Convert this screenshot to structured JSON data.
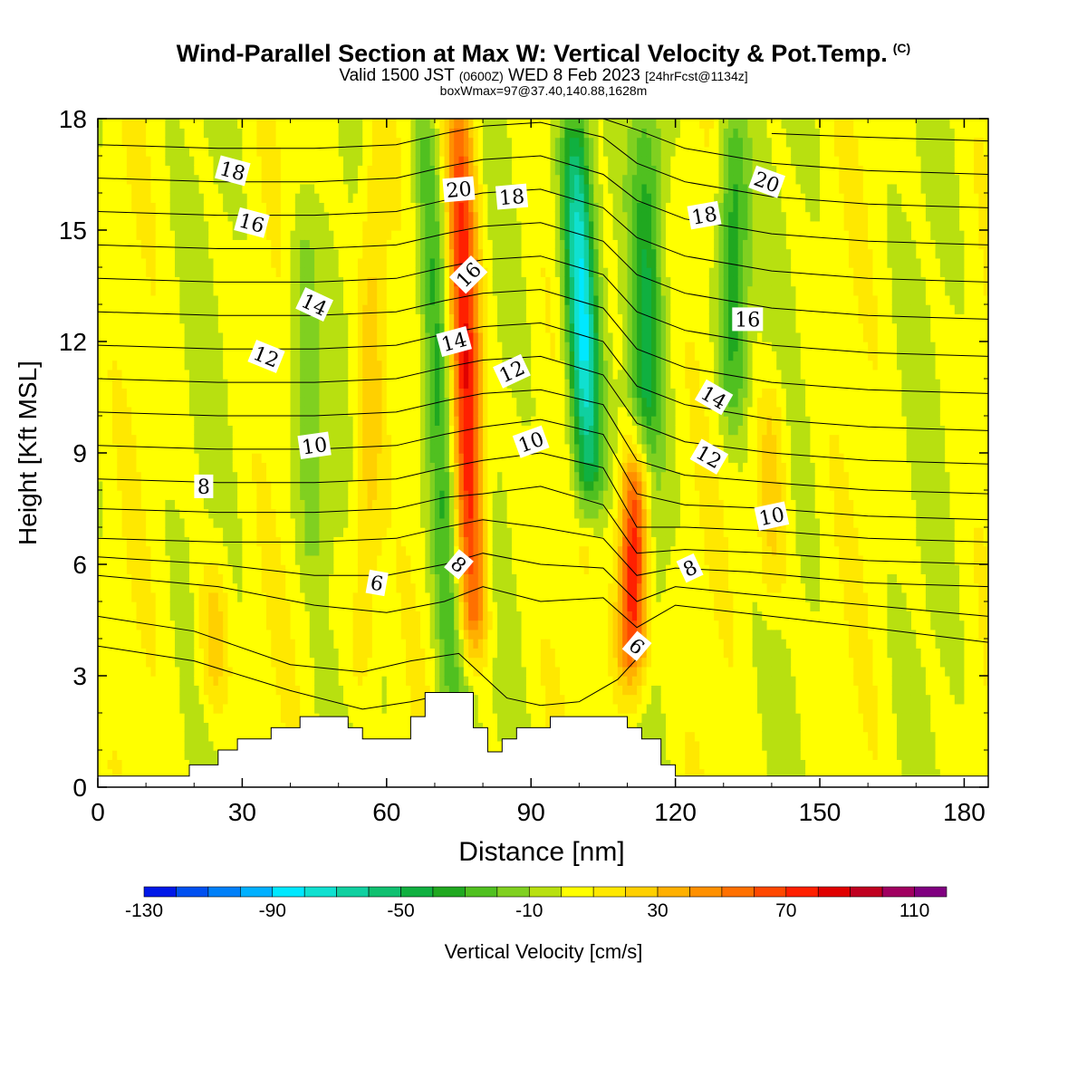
{
  "title": {
    "main": "Wind-Parallel Section at Max W: Vertical Velocity & Pot.Temp.",
    "copyright_mark": "(C)",
    "line2_a": "Valid 1500 JST",
    "line2_b": "(0600Z)",
    "line2_c": "WED 8 Feb 2023",
    "line2_d": "[24hrFcst@1134z]",
    "line3": "boxWmax=97@37.40,140.88,1628m"
  },
  "chart_data": {
    "type": "heatmap",
    "xlabel": "Distance [nm]",
    "ylabel": "Height [Kft MSL]",
    "xlim": [
      0,
      185
    ],
    "ylim": [
      0,
      18
    ],
    "x_ticks": [
      0,
      30,
      60,
      90,
      120,
      150,
      180
    ],
    "y_ticks": [
      0,
      3,
      6,
      9,
      12,
      15,
      18
    ],
    "colorbar": {
      "label": "Vertical Velocity [cm/s]",
      "levels": [
        -130,
        -120,
        -110,
        -100,
        -90,
        -80,
        -70,
        -60,
        -50,
        -40,
        -30,
        -20,
        -10,
        0,
        10,
        20,
        30,
        40,
        50,
        60,
        70,
        80,
        90,
        100,
        110,
        120
      ],
      "tick_labels": [
        -130,
        -90,
        -50,
        -10,
        30,
        70,
        110
      ],
      "colors": [
        "#0018e8",
        "#0050f0",
        "#0080f8",
        "#00b0ff",
        "#00e8ff",
        "#10e0d0",
        "#10d0a0",
        "#10c070",
        "#10b040",
        "#20a820",
        "#50c020",
        "#80d020",
        "#b8e010",
        "#ffff00",
        "#ffe800",
        "#ffd000",
        "#ffb000",
        "#ff9000",
        "#ff7000",
        "#ff4800",
        "#ff2000",
        "#e00000",
        "#c00020",
        "#a00060",
        "#800080"
      ]
    },
    "terrain_profile": [
      [
        0,
        0.3
      ],
      [
        19,
        0.3
      ],
      [
        19,
        0.6
      ],
      [
        25,
        0.6
      ],
      [
        25,
        1.0
      ],
      [
        29,
        1.0
      ],
      [
        29,
        1.3
      ],
      [
        36,
        1.3
      ],
      [
        36,
        1.6
      ],
      [
        42,
        1.6
      ],
      [
        42,
        1.9
      ],
      [
        52,
        1.9
      ],
      [
        52,
        1.6
      ],
      [
        55,
        1.6
      ],
      [
        55,
        1.3
      ],
      [
        65,
        1.3
      ],
      [
        65,
        1.9
      ],
      [
        68,
        1.9
      ],
      [
        68,
        2.55
      ],
      [
        78,
        2.55
      ],
      [
        78,
        1.6
      ],
      [
        81,
        1.6
      ],
      [
        81,
        0.95
      ],
      [
        84,
        0.95
      ],
      [
        84,
        1.3
      ],
      [
        87,
        1.3
      ],
      [
        87,
        1.6
      ],
      [
        94,
        1.6
      ],
      [
        94,
        1.9
      ],
      [
        110,
        1.9
      ],
      [
        110,
        1.6
      ],
      [
        113,
        1.6
      ],
      [
        113,
        1.3
      ],
      [
        117,
        1.3
      ],
      [
        117,
        0.6
      ],
      [
        120,
        0.6
      ],
      [
        120,
        0.3
      ],
      [
        185,
        0.3
      ]
    ],
    "vertical_velocity_features": [
      {
        "x": 74,
        "z_base": 2.2,
        "x_top": 68,
        "z_top": 18,
        "w": -45
      },
      {
        "x": 78,
        "z_base": 4,
        "x_top": 75,
        "z_top": 18,
        "w": 85
      },
      {
        "x": 102,
        "z_base": 8,
        "x_top": 99,
        "z_top": 18,
        "w": -90
      },
      {
        "x": 111,
        "z_base": 3,
        "x_top": 112,
        "z_top": 9,
        "w": 95
      },
      {
        "x": 114,
        "z_base": 5,
        "x_top": 114,
        "z_top": 18,
        "w": -40
      },
      {
        "x": 132,
        "z_base": 10,
        "x_top": 132,
        "z_top": 18,
        "w": -45
      },
      {
        "x": 55,
        "z_base": 3,
        "x_top": 58,
        "z_top": 18,
        "w": 25
      },
      {
        "x": 24,
        "z_base": 2,
        "x_top": 24,
        "z_top": 6,
        "w": 25
      },
      {
        "x": 140,
        "z_base": 5,
        "x_top": 140,
        "z_top": 11,
        "w": 25
      },
      {
        "x": 45,
        "z_base": 6,
        "x_top": 42,
        "z_top": 15,
        "w": -25
      }
    ],
    "theta_contour_labels": [
      {
        "text": "18",
        "x": 28,
        "z": 16.6,
        "rot": 15
      },
      {
        "text": "16",
        "x": 32,
        "z": 15.2,
        "rot": 15
      },
      {
        "text": "14",
        "x": 45,
        "z": 13.0,
        "rot": 25
      },
      {
        "text": "12",
        "x": 35,
        "z": 11.6,
        "rot": 22
      },
      {
        "text": "10",
        "x": 45,
        "z": 9.2,
        "rot": -8
      },
      {
        "text": "8",
        "x": 22,
        "z": 8.1,
        "rot": 0
      },
      {
        "text": "6",
        "x": 58,
        "z": 5.5,
        "rot": 10
      },
      {
        "text": "20",
        "x": 75,
        "z": 16.1,
        "rot": -5
      },
      {
        "text": "18",
        "x": 86,
        "z": 15.9,
        "rot": -5
      },
      {
        "text": "16",
        "x": 77,
        "z": 13.8,
        "rot": -45
      },
      {
        "text": "14",
        "x": 74,
        "z": 12.0,
        "rot": -15
      },
      {
        "text": "12",
        "x": 86,
        "z": 11.2,
        "rot": -25
      },
      {
        "text": "10",
        "x": 90,
        "z": 9.3,
        "rot": -20
      },
      {
        "text": "8",
        "x": 75,
        "z": 6.0,
        "rot": 40
      },
      {
        "text": "6",
        "x": 112,
        "z": 3.8,
        "rot": 40
      },
      {
        "text": "8",
        "x": 123,
        "z": 5.9,
        "rot": -25
      },
      {
        "text": "20",
        "x": 139,
        "z": 16.3,
        "rot": 20
      },
      {
        "text": "18",
        "x": 126,
        "z": 15.4,
        "rot": -10
      },
      {
        "text": "16",
        "x": 135,
        "z": 12.6,
        "rot": 0
      },
      {
        "text": "14",
        "x": 128,
        "z": 10.5,
        "rot": 30
      },
      {
        "text": "12",
        "x": 127,
        "z": 8.9,
        "rot": 30
      },
      {
        "text": "10",
        "x": 140,
        "z": 7.3,
        "rot": -12
      }
    ],
    "theta_isentropes": [
      [
        [
          0,
          3.8
        ],
        [
          20,
          3.4
        ],
        [
          40,
          2.6
        ],
        [
          55,
          2.1
        ],
        [
          65,
          2.3
        ],
        [
          72,
          2.5
        ]
      ],
      [
        [
          0,
          4.6
        ],
        [
          20,
          4.2
        ],
        [
          40,
          3.3
        ],
        [
          55,
          3.1
        ],
        [
          65,
          3.4
        ],
        [
          75,
          3.6
        ],
        [
          85,
          2.4
        ],
        [
          92,
          2.2
        ],
        [
          100,
          2.3
        ],
        [
          108,
          2.9
        ],
        [
          113,
          3.6
        ]
      ],
      [
        [
          0,
          5.7
        ],
        [
          25,
          5.4
        ],
        [
          45,
          4.9
        ],
        [
          60,
          4.7
        ],
        [
          72,
          5.0
        ],
        [
          80,
          5.4
        ],
        [
          92,
          5.0
        ],
        [
          105,
          5.1
        ],
        [
          112,
          4.3
        ],
        [
          120,
          4.9
        ],
        [
          140,
          4.6
        ],
        [
          160,
          4.3
        ],
        [
          185,
          3.9
        ]
      ],
      [
        [
          0,
          6.2
        ],
        [
          25,
          6.0
        ],
        [
          45,
          5.7
        ],
        [
          60,
          5.7
        ],
        [
          72,
          6.0
        ],
        [
          80,
          6.3
        ],
        [
          92,
          6.0
        ],
        [
          105,
          5.9
        ],
        [
          112,
          5.0
        ],
        [
          120,
          5.4
        ],
        [
          135,
          5.2
        ],
        [
          160,
          4.9
        ],
        [
          185,
          4.6
        ]
      ],
      [
        [
          0,
          6.7
        ],
        [
          25,
          6.6
        ],
        [
          45,
          6.6
        ],
        [
          62,
          6.7
        ],
        [
          72,
          7.0
        ],
        [
          80,
          7.2
        ],
        [
          92,
          7.0
        ],
        [
          105,
          6.7
        ],
        [
          112,
          5.7
        ],
        [
          120,
          5.9
        ],
        [
          135,
          5.8
        ],
        [
          160,
          5.5
        ],
        [
          185,
          5.4
        ]
      ],
      [
        [
          0,
          7.5
        ],
        [
          25,
          7.4
        ],
        [
          45,
          7.4
        ],
        [
          62,
          7.5
        ],
        [
          72,
          7.8
        ],
        [
          80,
          7.9
        ],
        [
          92,
          8.1
        ],
        [
          105,
          7.6
        ],
        [
          112,
          6.3
        ],
        [
          122,
          6.4
        ],
        [
          140,
          6.3
        ],
        [
          160,
          6.1
        ],
        [
          185,
          6.0
        ]
      ],
      [
        [
          0,
          8.3
        ],
        [
          25,
          8.2
        ],
        [
          45,
          8.2
        ],
        [
          62,
          8.3
        ],
        [
          72,
          8.6
        ],
        [
          80,
          8.8
        ],
        [
          92,
          9.0
        ],
        [
          105,
          8.6
        ],
        [
          112,
          7.0
        ],
        [
          122,
          7.0
        ],
        [
          140,
          6.9
        ],
        [
          160,
          6.7
        ],
        [
          185,
          6.6
        ]
      ],
      [
        [
          0,
          9.2
        ],
        [
          25,
          9.1
        ],
        [
          45,
          9.1
        ],
        [
          62,
          9.2
        ],
        [
          72,
          9.5
        ],
        [
          80,
          9.7
        ],
        [
          92,
          9.9
        ],
        [
          105,
          9.5
        ],
        [
          112,
          7.9
        ],
        [
          122,
          7.6
        ],
        [
          140,
          7.5
        ],
        [
          160,
          7.3
        ],
        [
          185,
          7.2
        ]
      ],
      [
        [
          0,
          10.1
        ],
        [
          25,
          10.0
        ],
        [
          45,
          10.0
        ],
        [
          62,
          10.1
        ],
        [
          72,
          10.4
        ],
        [
          80,
          10.6
        ],
        [
          92,
          10.7
        ],
        [
          105,
          10.3
        ],
        [
          112,
          8.8
        ],
        [
          122,
          8.4
        ],
        [
          140,
          8.2
        ],
        [
          160,
          8.0
        ],
        [
          185,
          7.9
        ]
      ],
      [
        [
          0,
          11.0
        ],
        [
          25,
          10.9
        ],
        [
          45,
          10.9
        ],
        [
          62,
          11.0
        ],
        [
          72,
          11.3
        ],
        [
          80,
          11.5
        ],
        [
          92,
          11.6
        ],
        [
          105,
          11.1
        ],
        [
          112,
          9.8
        ],
        [
          122,
          9.3
        ],
        [
          140,
          9.0
        ],
        [
          160,
          8.8
        ],
        [
          185,
          8.7
        ]
      ],
      [
        [
          0,
          11.9
        ],
        [
          25,
          11.8
        ],
        [
          45,
          11.8
        ],
        [
          62,
          11.9
        ],
        [
          72,
          12.2
        ],
        [
          80,
          12.4
        ],
        [
          92,
          12.5
        ],
        [
          105,
          12.0
        ],
        [
          112,
          10.8
        ],
        [
          122,
          10.3
        ],
        [
          140,
          9.9
        ],
        [
          160,
          9.7
        ],
        [
          185,
          9.6
        ]
      ],
      [
        [
          0,
          12.8
        ],
        [
          25,
          12.7
        ],
        [
          45,
          12.7
        ],
        [
          62,
          12.8
        ],
        [
          72,
          13.1
        ],
        [
          80,
          13.3
        ],
        [
          92,
          13.4
        ],
        [
          105,
          12.9
        ],
        [
          112,
          11.8
        ],
        [
          122,
          11.3
        ],
        [
          140,
          10.9
        ],
        [
          160,
          10.7
        ],
        [
          185,
          10.6
        ]
      ],
      [
        [
          0,
          13.7
        ],
        [
          25,
          13.6
        ],
        [
          45,
          13.6
        ],
        [
          62,
          13.7
        ],
        [
          72,
          14.0
        ],
        [
          80,
          14.2
        ],
        [
          92,
          14.3
        ],
        [
          105,
          13.8
        ],
        [
          112,
          12.8
        ],
        [
          122,
          12.3
        ],
        [
          140,
          11.9
        ],
        [
          160,
          11.7
        ],
        [
          185,
          11.6
        ]
      ],
      [
        [
          0,
          14.6
        ],
        [
          25,
          14.5
        ],
        [
          45,
          14.5
        ],
        [
          62,
          14.6
        ],
        [
          72,
          14.9
        ],
        [
          80,
          15.1
        ],
        [
          92,
          15.2
        ],
        [
          105,
          14.7
        ],
        [
          112,
          13.8
        ],
        [
          122,
          13.3
        ],
        [
          140,
          12.9
        ],
        [
          160,
          12.7
        ],
        [
          185,
          12.6
        ]
      ],
      [
        [
          0,
          15.5
        ],
        [
          25,
          15.4
        ],
        [
          45,
          15.4
        ],
        [
          62,
          15.5
        ],
        [
          72,
          15.8
        ],
        [
          80,
          16.0
        ],
        [
          92,
          16.1
        ],
        [
          105,
          15.6
        ],
        [
          112,
          14.8
        ],
        [
          122,
          14.3
        ],
        [
          140,
          13.9
        ],
        [
          160,
          13.7
        ],
        [
          185,
          13.6
        ]
      ],
      [
        [
          0,
          16.4
        ],
        [
          25,
          16.3
        ],
        [
          45,
          16.3
        ],
        [
          62,
          16.4
        ],
        [
          72,
          16.7
        ],
        [
          80,
          16.9
        ],
        [
          92,
          17.0
        ],
        [
          105,
          16.5
        ],
        [
          112,
          15.8
        ],
        [
          122,
          15.3
        ],
        [
          140,
          14.9
        ],
        [
          160,
          14.7
        ],
        [
          185,
          14.6
        ]
      ],
      [
        [
          0,
          17.3
        ],
        [
          25,
          17.2
        ],
        [
          45,
          17.2
        ],
        [
          62,
          17.3
        ],
        [
          72,
          17.6
        ],
        [
          80,
          17.8
        ],
        [
          92,
          17.9
        ],
        [
          105,
          17.5
        ],
        [
          112,
          16.8
        ],
        [
          122,
          16.3
        ],
        [
          140,
          15.9
        ],
        [
          160,
          15.7
        ],
        [
          185,
          15.6
        ]
      ],
      [
        [
          105,
          18.0
        ],
        [
          112,
          17.7
        ],
        [
          122,
          17.2
        ],
        [
          140,
          16.8
        ],
        [
          160,
          16.6
        ],
        [
          185,
          16.5
        ]
      ],
      [
        [
          140,
          17.6
        ],
        [
          160,
          17.5
        ],
        [
          185,
          17.4
        ]
      ]
    ]
  }
}
